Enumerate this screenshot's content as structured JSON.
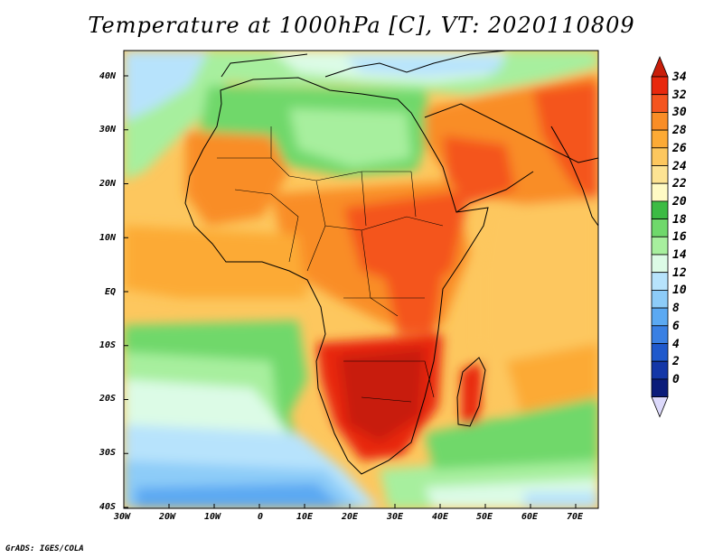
{
  "title": "Temperature at 1000hPa [C], VT: 2020110809",
  "credit": "GrADS: IGES/COLA",
  "axes": {
    "lon_labels": [
      "30W",
      "20W",
      "10W",
      "0",
      "10E",
      "20E",
      "30E",
      "40E",
      "50E",
      "60E",
      "70E"
    ],
    "lat_labels": [
      "40N",
      "30N",
      "20N",
      "10N",
      "EQ",
      "10S",
      "20S",
      "30S",
      "40S"
    ]
  },
  "colorbar": {
    "labels": [
      "34",
      "32",
      "30",
      "28",
      "26",
      "24",
      "22",
      "20",
      "18",
      "16",
      "14",
      "12",
      "10",
      "8",
      "6",
      "4",
      "2",
      "0"
    ],
    "colors": [
      "#e8280d",
      "#f4541f",
      "#f98d26",
      "#fcaa35",
      "#fdc75e",
      "#fde393",
      "#fffac4",
      "#3cbb44",
      "#6fd86b",
      "#a7ef9e",
      "#dcfbe6",
      "#b7e3fc",
      "#8dccf8",
      "#5ba9f2",
      "#3a80e3",
      "#1f59cc",
      "#1437a7",
      "#0b1c7a"
    ],
    "over_color": "#c81e0a",
    "under_color": "#dcd9fb"
  }
}
